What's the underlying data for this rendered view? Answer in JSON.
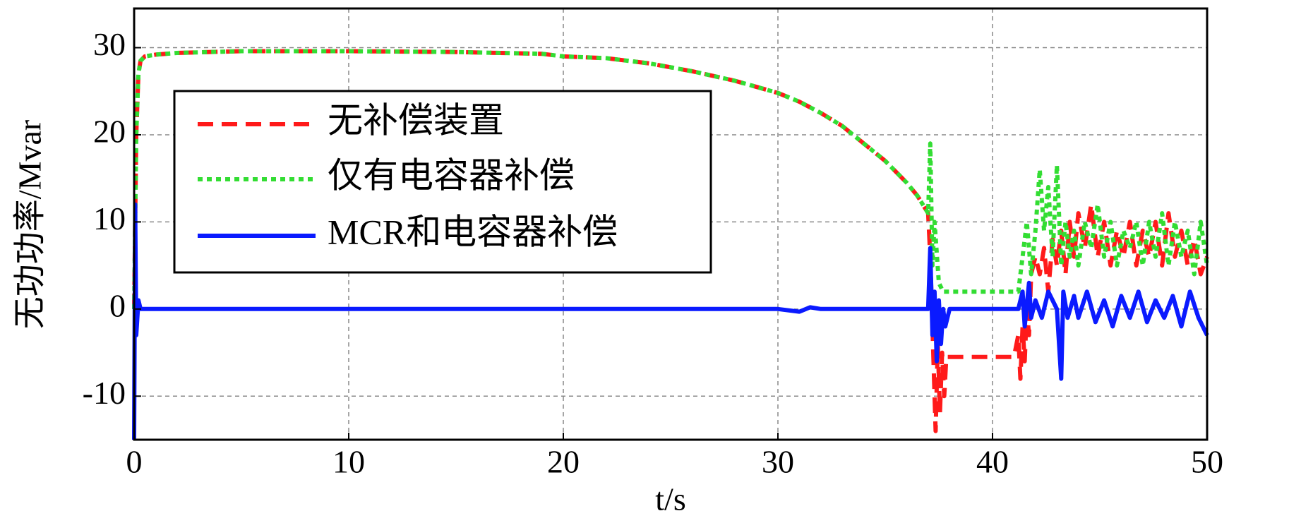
{
  "chart_data": {
    "type": "line",
    "xlabel": "t/s",
    "ylabel": "无功功率/Mvar",
    "xlim": [
      0,
      50
    ],
    "xticks": [
      0,
      10,
      20,
      30,
      40,
      50
    ],
    "ylim": [
      -15,
      34.5
    ],
    "yticks": [
      -10,
      0,
      10,
      20,
      30
    ],
    "grid": true,
    "legend": "upper left",
    "series": [
      {
        "name": "无补偿装置",
        "color": "#ff1a1a",
        "style": "dashed",
        "x": [
          0,
          0.1,
          0.2,
          0.3,
          0.5,
          1,
          2,
          5,
          10,
          15,
          19,
          20,
          22,
          24,
          26,
          28,
          30,
          31,
          32,
          33,
          34,
          35,
          36,
          36.5,
          37,
          37.1,
          37.2,
          37.35,
          37.45,
          37.55,
          37.65,
          37.75,
          37.85,
          38,
          41,
          41.2,
          41.3,
          41.4,
          41.5,
          41.6,
          41.7,
          41.8,
          42,
          42.2,
          42.4,
          42.6,
          42.8,
          43,
          43.2,
          43.4,
          43.6,
          43.8,
          44,
          44.3,
          44.6,
          44.9,
          45.2,
          45.5,
          45.8,
          46.1,
          46.4,
          46.7,
          47,
          47.3,
          47.6,
          47.9,
          48.2,
          48.5,
          48.8,
          49.1,
          49.4,
          49.7,
          50
        ],
        "values": [
          0,
          20,
          27,
          28.5,
          29,
          29.2,
          29.4,
          29.6,
          29.6,
          29.5,
          29.3,
          29,
          28.8,
          28.2,
          27.3,
          26.2,
          24.8,
          23.8,
          22.5,
          21,
          19,
          17,
          14.5,
          13,
          11,
          6,
          -2,
          -14,
          -4,
          -12,
          -5,
          -10,
          -5.5,
          -5.5,
          -5.5,
          -3,
          -8,
          -2,
          -6,
          0,
          -3,
          4,
          6,
          4,
          7,
          2,
          8,
          5,
          9,
          4,
          10,
          6,
          11,
          7,
          12,
          6,
          10,
          5,
          9,
          6,
          10,
          5,
          9,
          6,
          10,
          5,
          11,
          6,
          9,
          5,
          8,
          4,
          6
        ]
      },
      {
        "name": "仅有电容器补偿",
        "color": "#33dd33",
        "style": "dotted",
        "x": [
          0,
          0.1,
          0.2,
          0.3,
          0.5,
          1,
          2,
          5,
          10,
          15,
          19,
          20,
          22,
          24,
          26,
          28,
          30,
          31,
          32,
          33,
          34,
          35,
          36,
          36.5,
          37,
          37.1,
          37.2,
          37.3,
          37.5,
          37.7,
          41.2,
          41.4,
          41.6,
          41.8,
          42,
          42.2,
          42.4,
          42.6,
          42.8,
          43,
          43.2,
          43.4,
          43.6,
          43.8,
          44,
          44.3,
          44.6,
          44.9,
          45.2,
          45.5,
          45.8,
          46.1,
          46.4,
          46.7,
          47,
          47.3,
          47.6,
          47.9,
          48.2,
          48.5,
          48.8,
          49.1,
          49.4,
          49.7,
          50
        ],
        "values": [
          0,
          20,
          27,
          28.5,
          29,
          29.2,
          29.4,
          29.6,
          29.6,
          29.5,
          29.3,
          29,
          28.8,
          28.2,
          27.3,
          26.2,
          24.8,
          23.8,
          22.5,
          21,
          19,
          17,
          14.5,
          13,
          11,
          19,
          5,
          10,
          3,
          2,
          2,
          6,
          10,
          4,
          9,
          16,
          9,
          14,
          6,
          16.5,
          5,
          10,
          6,
          9,
          5,
          10,
          7,
          12,
          6,
          10,
          5,
          9,
          7,
          10,
          5,
          10,
          6,
          11,
          5,
          10,
          6,
          9,
          4,
          10,
          5
        ]
      },
      {
        "name": "MCR和电容器补偿",
        "color": "#0a1aff",
        "style": "solid",
        "x": [
          0,
          0.05,
          0.1,
          0.2,
          0.3,
          30,
          31,
          31.5,
          32,
          37,
          37.1,
          37.2,
          37.3,
          37.4,
          37.5,
          37.6,
          37.7,
          37.8,
          38,
          41.2,
          41.4,
          41.5,
          41.7,
          41.8,
          42,
          42.3,
          42.6,
          43,
          43.2,
          43.3,
          43.5,
          43.8,
          44,
          44.4,
          44.8,
          45.2,
          45.6,
          46,
          46.4,
          46.8,
          47.2,
          47.6,
          48,
          48.4,
          48.8,
          49.2,
          49.6,
          50
        ],
        "values": [
          -15,
          12,
          -3,
          1,
          0,
          0,
          -0.3,
          0.2,
          0,
          0,
          7,
          -3,
          2,
          -6,
          1,
          -4,
          0,
          -2,
          0,
          0,
          2,
          -2,
          3,
          -1,
          1,
          -1,
          2,
          0,
          -8,
          2,
          -1,
          1.5,
          -1,
          2,
          -1.5,
          1,
          -2,
          1.5,
          -1,
          2,
          -1.5,
          1,
          -1,
          1.5,
          -2,
          2,
          -1,
          -3
        ]
      }
    ]
  }
}
